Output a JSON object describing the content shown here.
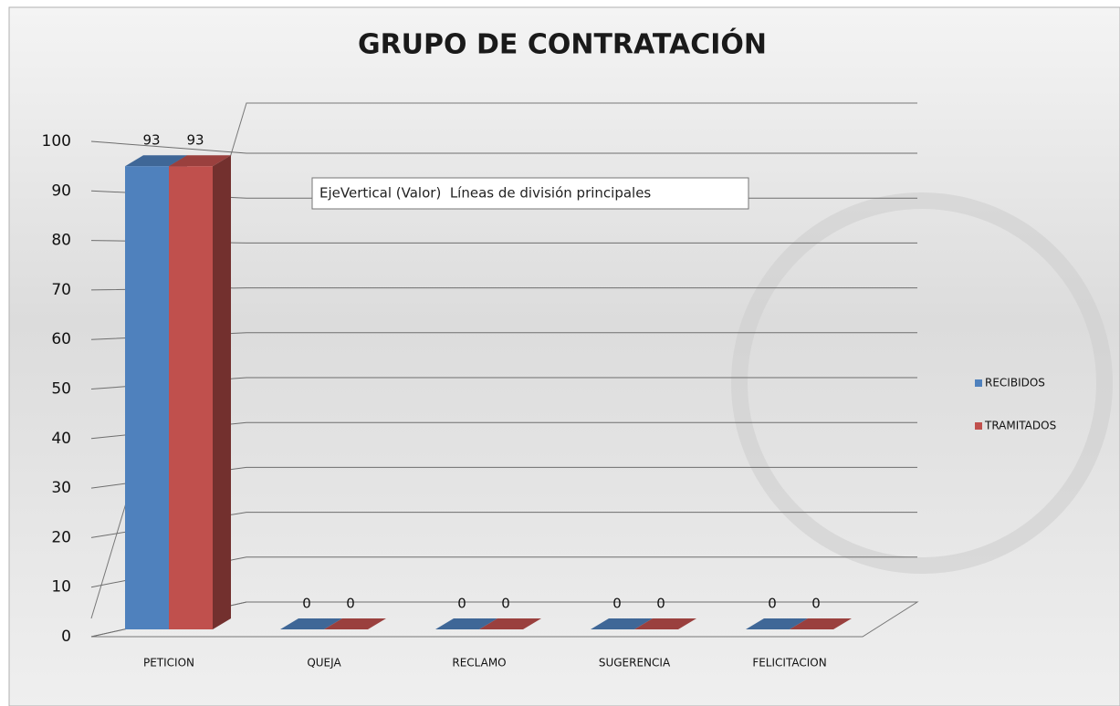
{
  "chart_data": {
    "type": "bar",
    "title": "GRUPO DE CONTRATACIÓN",
    "tooltip": "EjeVertical (Valor)  Líneas de división principales",
    "categories": [
      "PETICION",
      "QUEJA",
      "RECLAMO",
      "SUGERENCIA",
      "FELICITACION"
    ],
    "series": [
      {
        "name": "RECIBIDOS",
        "color": "#4f81bd",
        "values": [
          93,
          0,
          0,
          0,
          0
        ]
      },
      {
        "name": "TRAMITADOS",
        "color": "#c0504d",
        "values": [
          93,
          0,
          0,
          0,
          0
        ]
      }
    ],
    "ylim": [
      0,
      100
    ],
    "yticks": [
      0,
      10,
      20,
      30,
      40,
      50,
      60,
      70,
      80,
      90,
      100
    ],
    "grid": true,
    "legend": "right"
  }
}
